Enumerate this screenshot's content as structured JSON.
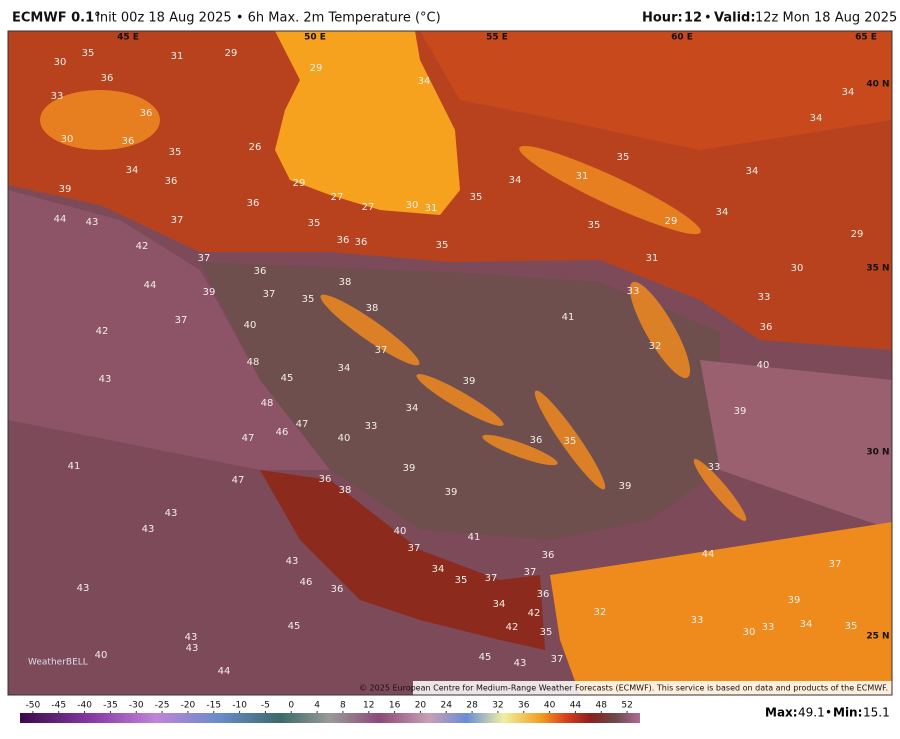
{
  "header": {
    "model": "ECMWF 0.1°",
    "info": "Init 00z 18 Aug 2025 • 6h Max. 2m Temperature (°C)",
    "hour_label": "Hour:",
    "hour": "12",
    "separator": "•",
    "valid_label": "Valid:",
    "valid": "12z Mon 18 Aug 2025"
  },
  "map": {
    "lon_labels": [
      "45 E",
      "50 E",
      "55 E",
      "60 E",
      "65 E"
    ],
    "lat_labels": [
      "40 N",
      "35 N",
      "30 N",
      "25 N"
    ],
    "temperatures": [
      30,
      36,
      33,
      36,
      30,
      36,
      35,
      34,
      36,
      39,
      44,
      43,
      37,
      42,
      37,
      44,
      39,
      36,
      37,
      35,
      38,
      38,
      37,
      40,
      42,
      43,
      48,
      45,
      34,
      37,
      48,
      34,
      33,
      47,
      46,
      47,
      40,
      39,
      36,
      35,
      39,
      39,
      39,
      41,
      47,
      36,
      38,
      43,
      43,
      40,
      37,
      41,
      36,
      37,
      34,
      35,
      37,
      36,
      34,
      32,
      42,
      42,
      35,
      33,
      30,
      33,
      34,
      35,
      43,
      46,
      36,
      45,
      43,
      43,
      40,
      44,
      43,
      37,
      45,
      43,
      44,
      37,
      39,
      39,
      40,
      36,
      33,
      30,
      33,
      32,
      33,
      31,
      29,
      35,
      34,
      34,
      35,
      31,
      34,
      35,
      31,
      30,
      27,
      27,
      29,
      26,
      36,
      35,
      36,
      36,
      35,
      34,
      41,
      34,
      34,
      29,
      31,
      29,
      29,
      35
    ],
    "watermark": "WeatherBELL",
    "copyright": "© 2025 European Centre for Medium-Range Weather Forecasts (ECMWF). This service is based on data and products of the ECMWF."
  },
  "colorbar": {
    "ticks": [
      -50,
      -45,
      -40,
      -35,
      -30,
      -25,
      -20,
      -15,
      -10,
      -5,
      0,
      4,
      8,
      12,
      16,
      20,
      24,
      28,
      32,
      36,
      40,
      44,
      48,
      52
    ]
  },
  "footer": {
    "max_label": "Max:",
    "max": 49.1,
    "separator": "•",
    "min_label": "Min:",
    "min": 15.1
  }
}
